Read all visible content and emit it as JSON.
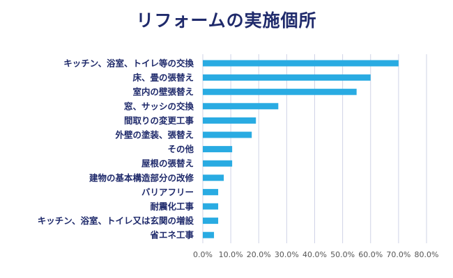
{
  "chart_data": {
    "type": "bar",
    "orientation": "horizontal",
    "title": "リフォームの実施個所",
    "categories": [
      "キッチン、浴室、トイレ等の交換",
      "床、畳の張替え",
      "室内の壁張替え",
      "窓、サッシの交換",
      "間取りの変更工事",
      "外壁の塗装、張替え",
      "その他",
      "屋根の張替え",
      "建物の基本構造部分の改修",
      "バリアフリー",
      "耐震化工事",
      "キッチン、浴室、トイレ又は玄関の増設",
      "省エネ工事"
    ],
    "values": [
      70.0,
      60.0,
      55.0,
      27.0,
      19.0,
      17.5,
      10.5,
      10.5,
      7.5,
      5.5,
      5.5,
      5.5,
      4.0
    ],
    "xlim": [
      0,
      80
    ],
    "xticks": [
      "0.0%",
      "10.0%",
      "20.0%",
      "30.0%",
      "40.0%",
      "50.0%",
      "60.0%",
      "70.0%",
      "80.0%"
    ],
    "grid": true,
    "bar_color": "#29abe2",
    "grid_color": "#cfd3e6",
    "label_color": "#1f2a6b"
  }
}
